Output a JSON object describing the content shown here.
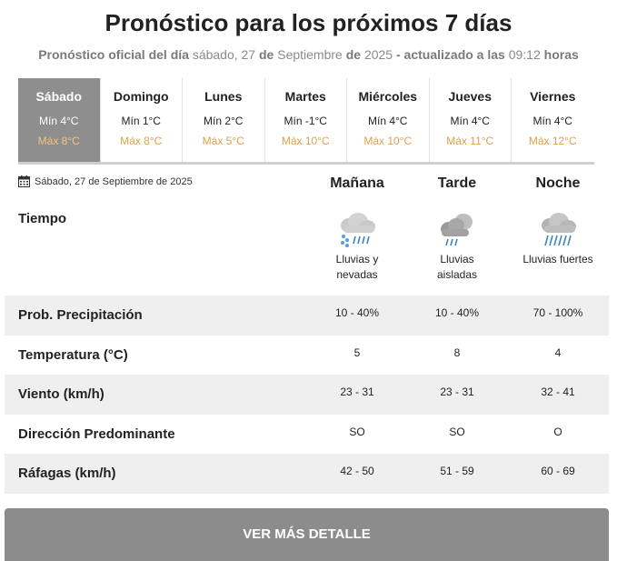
{
  "title": "Pronóstico para los próximos 7 días",
  "subtitle": {
    "prefix": "Pronóstico oficial del día",
    "day": "sábado, 27",
    "de1": "de",
    "month": "Septiembre",
    "de2": "de",
    "year": "2025",
    "updated": "- actualizado a las",
    "time": "09:12",
    "hours": "horas"
  },
  "days": [
    {
      "name": "Sábado",
      "min": "Mín 4°C",
      "max": "Máx 8°C"
    },
    {
      "name": "Domingo",
      "min": "Mín 1°C",
      "max": "Máx 8°C"
    },
    {
      "name": "Lunes",
      "min": "Mín 2°C",
      "max": "Máx 5°C"
    },
    {
      "name": "Martes",
      "min": "Mín -1°C",
      "max": "Máx 10°C"
    },
    {
      "name": "Miércoles",
      "min": "Mín 4°C",
      "max": "Máx 10°C"
    },
    {
      "name": "Jueves",
      "min": "Mín 4°C",
      "max": "Máx 11°C"
    },
    {
      "name": "Viernes",
      "min": "Mín 4°C",
      "max": "Máx 12°C"
    }
  ],
  "selected_date": "Sábado, 27 de Septiembre de 2025",
  "periods": [
    "Mañana",
    "Tarde",
    "Noche"
  ],
  "tiempo_label": "Tiempo",
  "weather": [
    {
      "line1": "Lluvias y",
      "line2": "nevadas",
      "icon": "rain-snow-icon"
    },
    {
      "line1": "Lluvias",
      "line2": "aisladas",
      "icon": "isolated-rain-icon"
    },
    {
      "line1": "Lluvias fuertes",
      "line2": "",
      "icon": "heavy-rain-icon"
    }
  ],
  "rows": [
    {
      "label": "Prob. Precipitación",
      "values": [
        "10 - 40%",
        "10 - 40%",
        "70 - 100%"
      ]
    },
    {
      "label": "Temperatura (°C)",
      "values": [
        "5",
        "8",
        "4"
      ]
    },
    {
      "label": "Viento (km/h)",
      "values": [
        "23 - 31",
        "23 - 31",
        "32 - 41"
      ]
    },
    {
      "label": "Dirección Predominante",
      "values": [
        "SO",
        "SO",
        "O"
      ]
    },
    {
      "label": "Ráfagas (km/h)",
      "values": [
        "42 - 50",
        "51 - 59",
        "60 - 69"
      ]
    }
  ],
  "button_label": "VER MÁS DETALLE",
  "colors": {
    "accent_max": "#e0a04a",
    "active_day_bg": "#8e8e8e",
    "button_bg": "#8c8c8c"
  }
}
